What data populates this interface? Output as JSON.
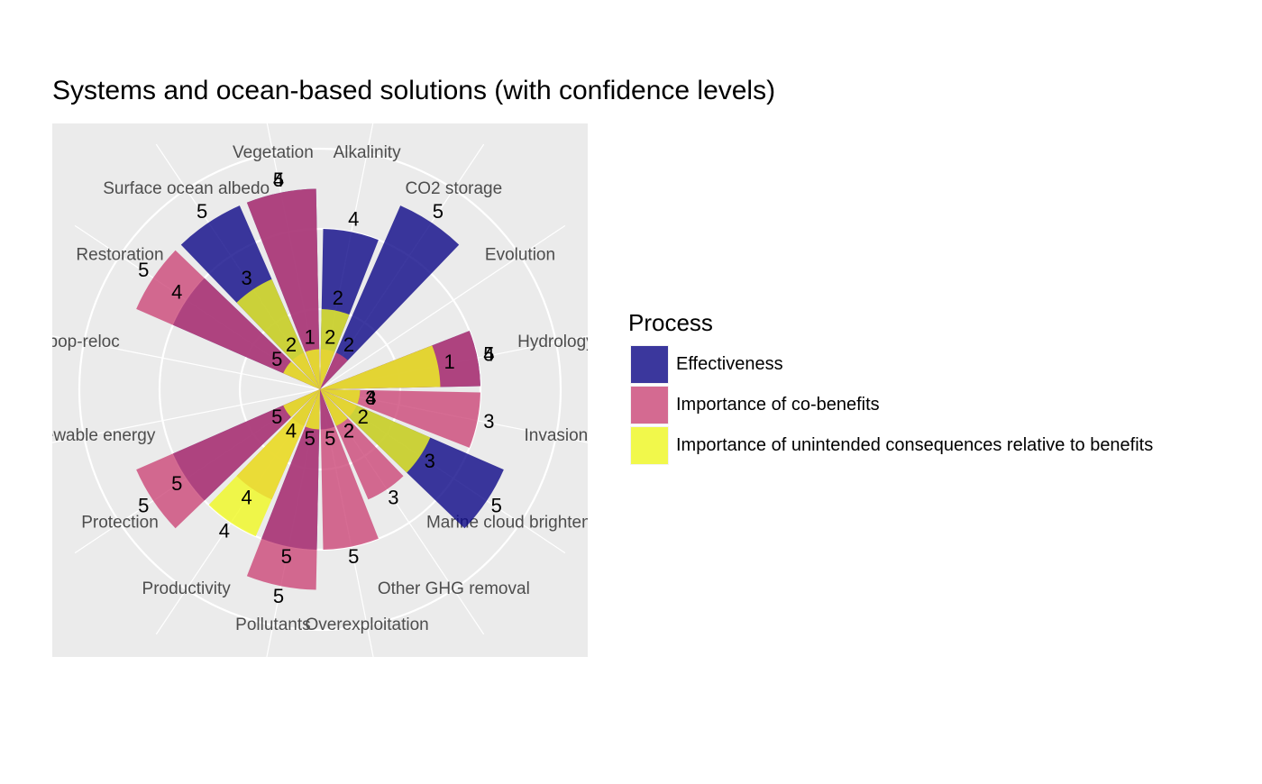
{
  "chart_data": {
    "type": "polar-bar",
    "title": "Systems and ocean-based solutions (with confidence levels)",
    "legend_title": "Process",
    "categories": [
      "Alkalinity",
      "CO2 storage",
      "Evolution",
      "Hydrology",
      "Invasion",
      "Marine cloud brightening",
      "Other GHG removal",
      "Overexploitation",
      "Pollutants",
      "Productivity",
      "Protection",
      "Renewable energy",
      "pop-reloc",
      "Restoration",
      "Surface ocean albedo",
      "Vegetation"
    ],
    "series": [
      {
        "name": "Effectiveness",
        "color": "#0d0887",
        "values": [
          4,
          5,
          null,
          4,
          1,
          5,
          1,
          1,
          4,
          1,
          4,
          null,
          null,
          4,
          5,
          5
        ],
        "confidence": [
          4,
          5,
          null,
          5,
          4,
          5,
          2,
          5,
          5,
          4,
          5,
          null,
          null,
          4,
          5,
          5
        ]
      },
      {
        "name": "Importance of co-benefits",
        "color": "#cc4778",
        "values": [
          1,
          1,
          null,
          4,
          4,
          1,
          3,
          4,
          5,
          3,
          5,
          null,
          null,
          5,
          1,
          5
        ],
        "confidence": [
          2,
          2,
          null,
          4,
          3,
          2,
          3,
          5,
          5,
          4,
          5,
          null,
          null,
          5,
          2,
          4
        ]
      },
      {
        "name": "Importance of unintended consequences relative to benefits",
        "color": "#f0f921",
        "values": [
          2,
          null,
          null,
          3,
          1,
          3,
          1,
          null,
          1,
          4,
          1,
          null,
          null,
          1,
          3,
          1
        ],
        "confidence": [
          2,
          null,
          null,
          1,
          3,
          3,
          2,
          null,
          5,
          4,
          5,
          null,
          null,
          5,
          3,
          1
        ]
      }
    ],
    "ylim": [
      0,
      6
    ],
    "yticks": [
      2,
      4,
      6
    ],
    "grid": true,
    "legend_position": "right"
  }
}
